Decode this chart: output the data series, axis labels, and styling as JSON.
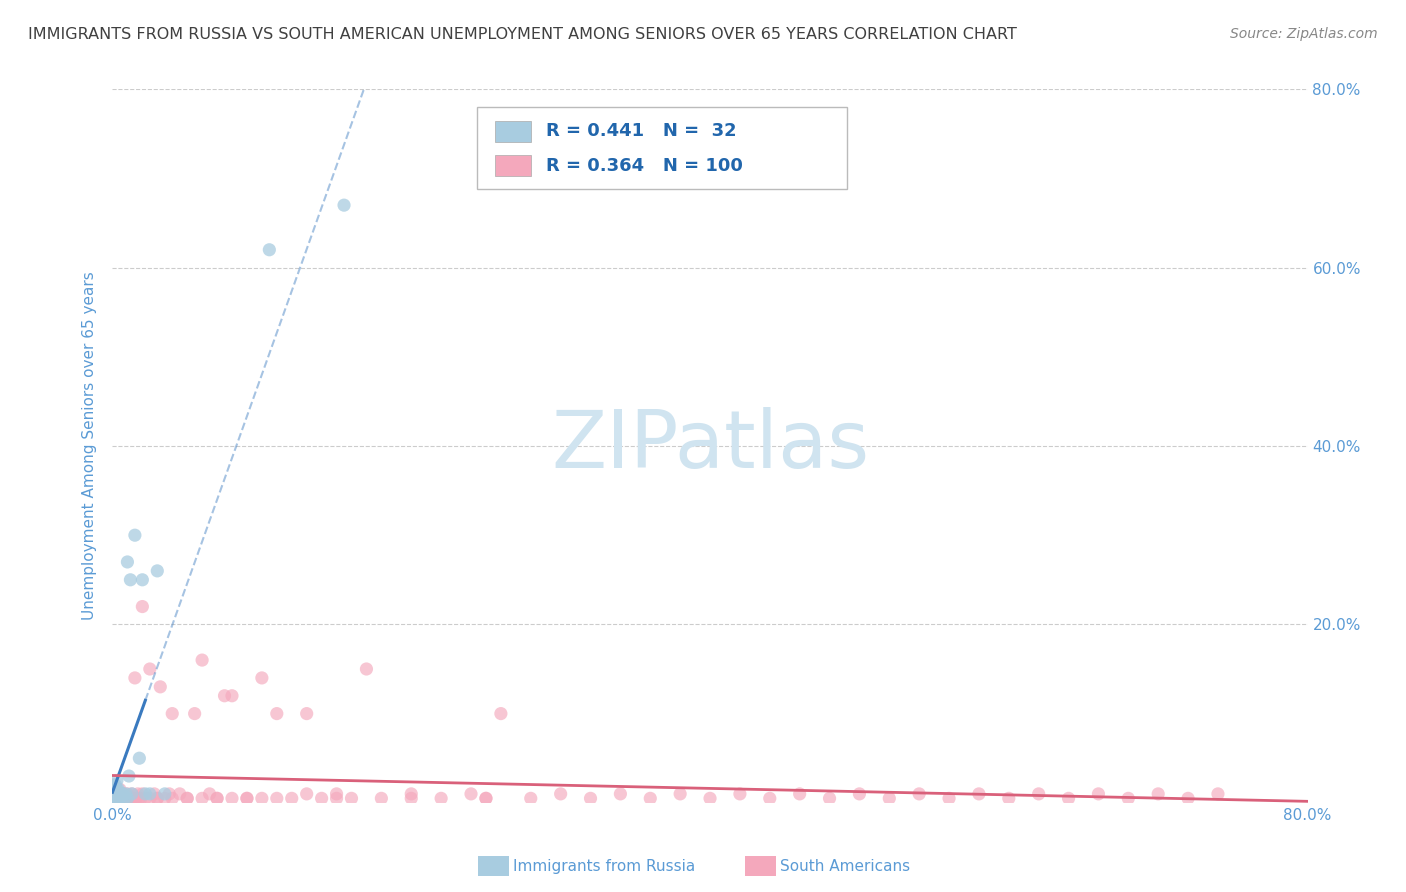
{
  "title": "IMMIGRANTS FROM RUSSIA VS SOUTH AMERICAN UNEMPLOYMENT AMONG SENIORS OVER 65 YEARS CORRELATION CHART",
  "source": "Source: ZipAtlas.com",
  "ylabel": "Unemployment Among Seniors over 65 years",
  "watermark_text": "ZIPatlas",
  "legend_R1": "0.441",
  "legend_N1": "32",
  "legend_R2": "0.364",
  "legend_N2": "100",
  "blue_scatter_color": "#a8cce0",
  "pink_scatter_color": "#f4a8bc",
  "blue_line_color": "#3a7abf",
  "pink_line_color": "#d9607a",
  "axis_label_color": "#5b9bd5",
  "tick_label_color": "#5b9bd5",
  "title_color": "#404040",
  "source_color": "#888888",
  "legend_text_color": "#2166ac",
  "background_color": "#ffffff",
  "grid_color": "#cccccc",
  "watermark_color": "#d0e4f0",
  "xlim": [
    0.0,
    0.8
  ],
  "ylim": [
    0.0,
    0.8
  ],
  "xtick_vals": [
    0.0,
    0.2,
    0.4,
    0.6,
    0.8
  ],
  "xticklabels": [
    "0.0%",
    "",
    "",
    "",
    "80.0%"
  ],
  "right_ytick_vals": [
    0.2,
    0.4,
    0.6,
    0.8
  ],
  "right_yticklabels": [
    "20.0%",
    "40.0%",
    "60.0%",
    "80.0%"
  ],
  "russia_x": [
    0.001,
    0.001,
    0.001,
    0.001,
    0.002,
    0.002,
    0.002,
    0.003,
    0.003,
    0.003,
    0.004,
    0.004,
    0.005,
    0.005,
    0.006,
    0.007,
    0.008,
    0.009,
    0.01,
    0.01,
    0.011,
    0.012,
    0.013,
    0.015,
    0.018,
    0.02,
    0.022,
    0.025,
    0.03,
    0.035,
    0.105,
    0.155
  ],
  "russia_y": [
    0.005,
    0.01,
    0.015,
    0.02,
    0.005,
    0.01,
    0.02,
    0.005,
    0.015,
    0.025,
    0.005,
    0.015,
    0.005,
    0.01,
    0.01,
    0.01,
    0.005,
    0.01,
    0.005,
    0.27,
    0.03,
    0.25,
    0.01,
    0.3,
    0.05,
    0.25,
    0.01,
    0.01,
    0.26,
    0.01,
    0.62,
    0.67
  ],
  "sa_x": [
    0.001,
    0.001,
    0.001,
    0.002,
    0.002,
    0.003,
    0.003,
    0.004,
    0.004,
    0.005,
    0.005,
    0.006,
    0.006,
    0.007,
    0.007,
    0.008,
    0.009,
    0.01,
    0.01,
    0.011,
    0.012,
    0.013,
    0.014,
    0.015,
    0.015,
    0.016,
    0.017,
    0.018,
    0.019,
    0.02,
    0.022,
    0.025,
    0.025,
    0.028,
    0.03,
    0.032,
    0.035,
    0.038,
    0.04,
    0.045,
    0.05,
    0.055,
    0.06,
    0.065,
    0.07,
    0.075,
    0.08,
    0.09,
    0.1,
    0.11,
    0.12,
    0.13,
    0.14,
    0.15,
    0.16,
    0.17,
    0.18,
    0.2,
    0.22,
    0.24,
    0.25,
    0.26,
    0.28,
    0.3,
    0.32,
    0.34,
    0.36,
    0.38,
    0.4,
    0.42,
    0.44,
    0.46,
    0.48,
    0.5,
    0.52,
    0.54,
    0.56,
    0.58,
    0.6,
    0.62,
    0.64,
    0.66,
    0.68,
    0.7,
    0.72,
    0.74,
    0.02,
    0.03,
    0.04,
    0.05,
    0.06,
    0.07,
    0.08,
    0.09,
    0.1,
    0.11,
    0.13,
    0.15,
    0.2,
    0.25
  ],
  "sa_y": [
    0.005,
    0.01,
    0.02,
    0.005,
    0.015,
    0.005,
    0.01,
    0.005,
    0.01,
    0.005,
    0.015,
    0.005,
    0.01,
    0.005,
    0.01,
    0.005,
    0.005,
    0.005,
    0.01,
    0.005,
    0.005,
    0.01,
    0.005,
    0.005,
    0.14,
    0.005,
    0.01,
    0.005,
    0.005,
    0.01,
    0.005,
    0.005,
    0.15,
    0.01,
    0.005,
    0.13,
    0.005,
    0.01,
    0.005,
    0.01,
    0.005,
    0.1,
    0.005,
    0.01,
    0.005,
    0.12,
    0.005,
    0.005,
    0.005,
    0.1,
    0.005,
    0.01,
    0.005,
    0.01,
    0.005,
    0.15,
    0.005,
    0.01,
    0.005,
    0.01,
    0.005,
    0.1,
    0.005,
    0.01,
    0.005,
    0.01,
    0.005,
    0.01,
    0.005,
    0.01,
    0.005,
    0.01,
    0.005,
    0.01,
    0.005,
    0.01,
    0.005,
    0.01,
    0.005,
    0.01,
    0.005,
    0.01,
    0.005,
    0.01,
    0.005,
    0.01,
    0.22,
    0.005,
    0.1,
    0.005,
    0.16,
    0.005,
    0.12,
    0.005,
    0.14,
    0.005,
    0.1,
    0.005,
    0.005,
    0.005
  ]
}
